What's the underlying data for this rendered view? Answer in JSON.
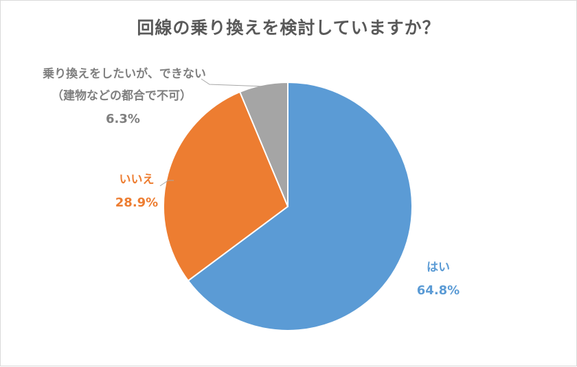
{
  "chart_data": {
    "type": "pie",
    "title": "回線の乗り換えを検討していますか？",
    "slices": [
      {
        "label": "はい",
        "value": 64.8,
        "percent_text": "64.8%",
        "color": "#5b9bd5"
      },
      {
        "label": "いいえ",
        "value": 28.9,
        "percent_text": "28.9%",
        "color": "#ed7d31"
      },
      {
        "label_lines": [
          "乗り換えをしたいが、できない",
          "（建物などの都合で不可）"
        ],
        "value": 6.3,
        "percent_text": "6.3%",
        "color": "#a5a5a5"
      }
    ]
  }
}
